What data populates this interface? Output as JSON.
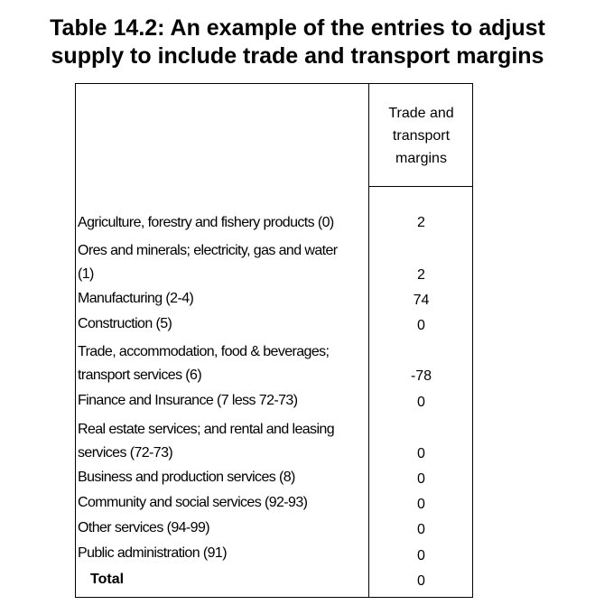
{
  "title": {
    "line1": "Table 14.2: An example of the entries to adjust",
    "line2": "supply to include trade and transport margins"
  },
  "table": {
    "column_header": [
      "Trade and",
      "transport",
      "margins"
    ],
    "rows": [
      {
        "label": [
          "Agriculture, forestry and fishery products (0)"
        ],
        "value": "2"
      },
      {
        "label": [
          "Ores and minerals; electricity, gas and water",
          "(1)"
        ],
        "value": "2"
      },
      {
        "label": [
          "Manufacturing (2-4)"
        ],
        "value": "74"
      },
      {
        "label": [
          "Construction (5)"
        ],
        "value": "0"
      },
      {
        "label": [
          "Trade, accommodation, food & beverages;",
          "transport services  (6)"
        ],
        "value": "-78"
      },
      {
        "label": [
          "Finance and Insurance (7 less 72-73)"
        ],
        "value": "0"
      },
      {
        "label": [
          "Real estate services; and rental and leasing",
          "services (72-73)"
        ],
        "value": "0"
      },
      {
        "label": [
          "Business and production services (8)"
        ],
        "value": "0"
      },
      {
        "label": [
          "Community and social services (92-93)"
        ],
        "value": "0"
      },
      {
        "label": [
          "Other services (94-99)"
        ],
        "value": "0"
      },
      {
        "label": [
          "Public administration (91)"
        ],
        "value": "0"
      }
    ],
    "total": {
      "label": "Total",
      "value": "0"
    }
  }
}
